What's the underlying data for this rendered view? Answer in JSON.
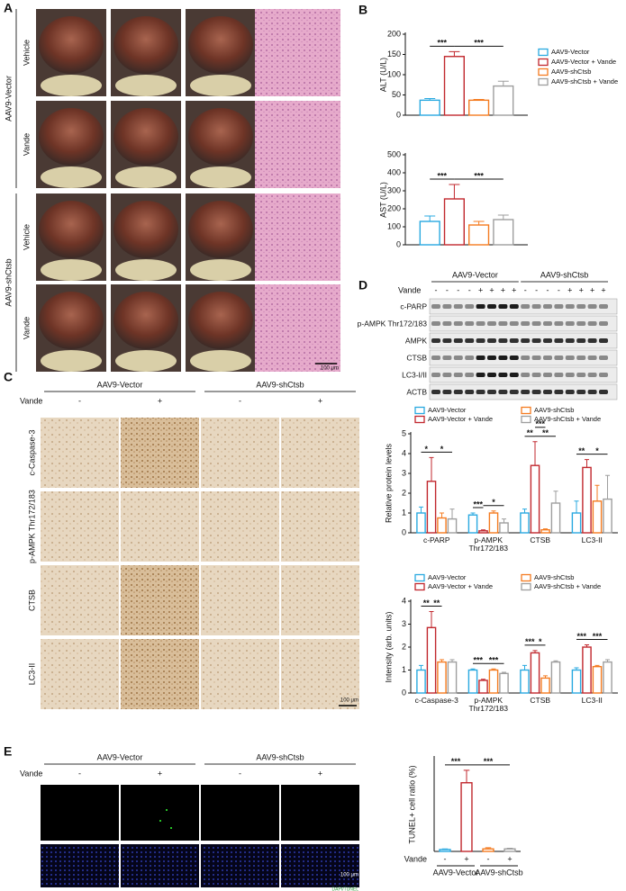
{
  "panel_a": {
    "label": "A",
    "groups": [
      "AAV9-Vector",
      "AAV9-shCtsb"
    ],
    "rows": [
      "Vehicle",
      "Vande",
      "Vehicle",
      "Vande"
    ],
    "scale_bar": "100 μm"
  },
  "panel_b": {
    "label": "B"
  },
  "panel_c": {
    "label": "C",
    "groups": [
      "AAV9-Vector",
      "AAV9-shCtsb"
    ],
    "treatment": "Vande",
    "signs": [
      "-",
      "+",
      "-",
      "+"
    ],
    "rows": [
      "c-Caspase-3",
      "p-AMPK Thr172/183",
      "CTSB",
      "LC3-II"
    ],
    "scale_bar": "100 μm"
  },
  "panel_d": {
    "label": "D",
    "groups": [
      "AAV9-Vector",
      "AAV9-shCtsb"
    ],
    "treatment": "Vande",
    "signs": [
      "-",
      "-",
      "-",
      "-",
      "+",
      "+",
      "+",
      "+",
      "-",
      "-",
      "-",
      "-",
      "+",
      "+",
      "+",
      "+"
    ],
    "blots": [
      "c-PARP",
      "p-AMPK Thr172/183",
      "AMPK",
      "CTSB",
      "LC3-I/II",
      "ACTB"
    ]
  },
  "panel_e": {
    "label": "E",
    "groups": [
      "AAV9-Vector",
      "AAV9-shCtsb"
    ],
    "treatment": "Vande",
    "signs": [
      "-",
      "+",
      "-",
      "+"
    ],
    "scale_bar": "100 μm",
    "stain": "DAPI/TUNEL"
  },
  "chart_data": [
    {
      "type": "bar",
      "ylabel": "ALT (U/L)",
      "categories": [
        null
      ],
      "ylim": [
        0,
        200
      ],
      "yticks": [
        0,
        50,
        100,
        150,
        200
      ],
      "legend": "right",
      "series": [
        {
          "name": "AAV9-Vector",
          "color": "#29a9e0",
          "values": [
            37
          ],
          "errors": [
            4
          ]
        },
        {
          "name": "AAV9-Vector + Vande",
          "color": "#c1272d",
          "values": [
            145
          ],
          "errors": [
            12
          ]
        },
        {
          "name": "AAV9-shCtsb",
          "color": "#f47b20",
          "values": [
            37
          ],
          "errors": [
            2
          ]
        },
        {
          "name": "AAV9-shCtsb + Vande",
          "color": "#9e9e9e",
          "values": [
            72
          ],
          "errors": [
            12
          ]
        }
      ],
      "annotations": [
        {
          "text": "***",
          "category": 0,
          "pair": [
            0,
            1
          ]
        },
        {
          "text": "***",
          "category": 0,
          "pair": [
            1,
            3
          ]
        }
      ]
    },
    {
      "type": "bar",
      "ylabel": "AST (U/L)",
      "categories": [
        null
      ],
      "ylim": [
        0,
        500
      ],
      "yticks": [
        0,
        100,
        200,
        300,
        400,
        500
      ],
      "series": [
        {
          "color": "#29a9e0",
          "values": [
            130
          ],
          "errors": [
            30
          ]
        },
        {
          "color": "#c1272d",
          "values": [
            255
          ],
          "errors": [
            80
          ]
        },
        {
          "color": "#f47b20",
          "values": [
            110
          ],
          "errors": [
            20
          ]
        },
        {
          "color": "#9e9e9e",
          "values": [
            140
          ],
          "errors": [
            25
          ]
        }
      ],
      "annotations": [
        {
          "text": "***",
          "category": 0,
          "pair": [
            0,
            1
          ]
        },
        {
          "text": "***",
          "category": 0,
          "pair": [
            1,
            3
          ]
        }
      ]
    },
    {
      "type": "bar",
      "ylabel": "Relative protein levels",
      "categories": [
        "c-PARP",
        "p-AMPK Thr172/183",
        "CTSB",
        "LC3-II"
      ],
      "ylim": [
        0,
        5
      ],
      "yticks": [
        0,
        1,
        2,
        3,
        4,
        5
      ],
      "legend": "top",
      "series": [
        {
          "name": "AAV9-Vector",
          "color": "#29a9e0",
          "values": [
            1.0,
            0.9,
            1.0,
            1.0
          ],
          "errors": [
            0.3,
            0.1,
            0.2,
            0.6
          ]
        },
        {
          "name": "AAV9-Vector + Vande",
          "color": "#c1272d",
          "values": [
            2.6,
            0.1,
            3.4,
            3.3
          ],
          "errors": [
            1.2,
            0.05,
            1.2,
            0.4
          ]
        },
        {
          "name": "AAV9-shCtsb",
          "color": "#f47b20",
          "values": [
            0.75,
            1.0,
            0.15,
            1.6
          ],
          "errors": [
            0.25,
            0.1,
            0.05,
            0.8
          ]
        },
        {
          "name": "AAV9-shCtsb + Vande",
          "color": "#9e9e9e",
          "values": [
            0.7,
            0.5,
            1.5,
            1.7
          ],
          "errors": [
            0.5,
            0.2,
            0.6,
            1.2
          ]
        }
      ],
      "annotations": [
        {
          "text": "*",
          "category": 0,
          "pair": [
            0,
            1
          ]
        },
        {
          "text": "*",
          "category": 0,
          "pair": [
            1,
            3
          ]
        },
        {
          "text": "***",
          "category": 1,
          "pair": [
            0,
            1
          ]
        },
        {
          "text": "*",
          "category": 1,
          "pair": [
            1,
            3
          ]
        },
        {
          "text": "**",
          "category": 2,
          "pair": [
            0,
            1
          ]
        },
        {
          "text": "**",
          "category": 2,
          "pair": [
            1,
            3
          ]
        },
        {
          "text": "***",
          "category": 2,
          "pair": [
            1,
            2
          ]
        },
        {
          "text": "**",
          "category": 3,
          "pair": [
            0,
            1
          ]
        },
        {
          "text": "*",
          "category": 3,
          "pair": [
            1,
            3
          ]
        }
      ]
    },
    {
      "type": "bar",
      "ylabel": "Intensity (arb. units)",
      "categories": [
        "c-Caspase-3",
        "p-AMPK Thr172/183",
        "CTSB",
        "LC3-II"
      ],
      "ylim": [
        0,
        4
      ],
      "yticks": [
        0,
        1,
        2,
        3,
        4
      ],
      "legend": "top",
      "series": [
        {
          "name": "AAV9-Vector",
          "color": "#29a9e0",
          "values": [
            1.0,
            1.0,
            1.0,
            1.0
          ],
          "errors": [
            0.2,
            0.05,
            0.2,
            0.1
          ]
        },
        {
          "name": "AAV9-Vector + Vande",
          "color": "#c1272d",
          "values": [
            2.85,
            0.55,
            1.75,
            2.0
          ],
          "errors": [
            0.7,
            0.05,
            0.1,
            0.1
          ]
        },
        {
          "name": "AAV9-shCtsb",
          "color": "#f47b20",
          "values": [
            1.35,
            1.0,
            0.65,
            1.15
          ],
          "errors": [
            0.1,
            0.05,
            0.1,
            0.05
          ]
        },
        {
          "name": "AAV9-shCtsb + Vande",
          "color": "#9e9e9e",
          "values": [
            1.35,
            0.85,
            1.35,
            1.35
          ],
          "errors": [
            0.1,
            0.05,
            0.05,
            0.1
          ]
        }
      ],
      "annotations": [
        {
          "text": "**",
          "category": 0,
          "pair": [
            0,
            1
          ]
        },
        {
          "text": "**",
          "category": 0,
          "pair": [
            1,
            2
          ]
        },
        {
          "text": "***",
          "category": 1,
          "pair": [
            0,
            1
          ]
        },
        {
          "text": "***",
          "category": 1,
          "pair": [
            1,
            3
          ]
        },
        {
          "text": "***",
          "category": 2,
          "pair": [
            0,
            1
          ]
        },
        {
          "text": "*",
          "category": 2,
          "pair": [
            1,
            2
          ]
        },
        {
          "text": "***",
          "category": 3,
          "pair": [
            0,
            1
          ]
        },
        {
          "text": "***",
          "category": 3,
          "pair": [
            1,
            3
          ]
        }
      ]
    },
    {
      "type": "bar",
      "ylabel": "TUNEL+ cell ratio (%)",
      "xlabel": "Vande",
      "categories": [
        "-",
        "+",
        "-",
        "+"
      ],
      "groups": [
        "AAV9-Vector",
        "AAV9-shCtsb"
      ],
      "ylim": [
        0,
        15
      ],
      "values": [
        0.3,
        11,
        0.4,
        0.4
      ],
      "errors": [
        0.1,
        2,
        0.2,
        0.1
      ],
      "colors": [
        "#29a9e0",
        "#c1272d",
        "#f47b20",
        "#9e9e9e"
      ],
      "annotations": [
        {
          "text": "***",
          "pair": [
            0,
            1
          ]
        },
        {
          "text": "***",
          "pair": [
            1,
            3
          ]
        }
      ]
    }
  ]
}
